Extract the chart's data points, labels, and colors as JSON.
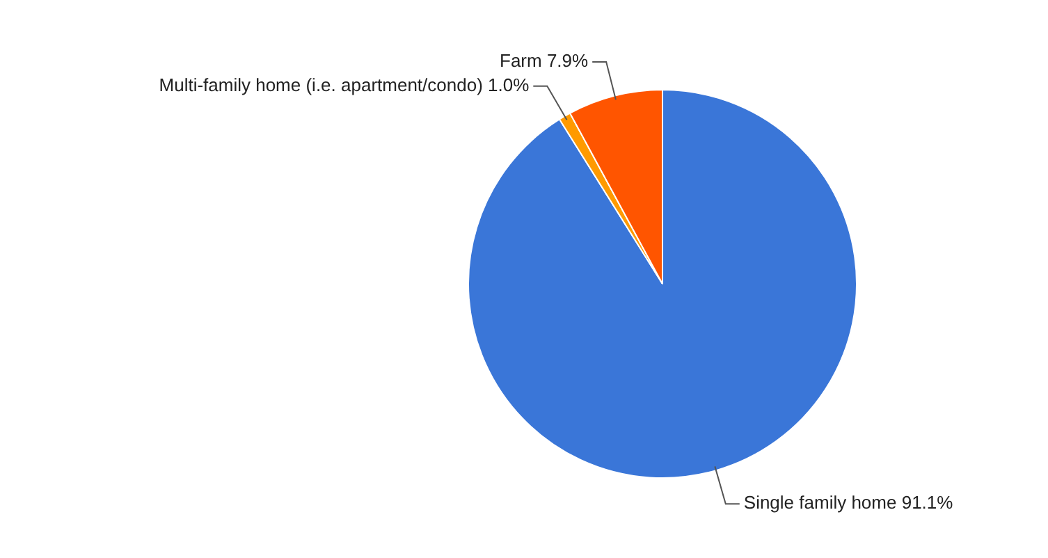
{
  "chart_data": {
    "type": "pie",
    "categories": [
      "Single family home",
      "Multi-family home (i.e. apartment/condo)",
      "Farm"
    ],
    "values": [
      91.1,
      1.0,
      7.9
    ],
    "value_labels": [
      "91.1%",
      "1.0%",
      "7.9%"
    ],
    "colors": [
      "#3a76d8",
      "#ff9a00",
      "#ff5500"
    ],
    "legend": false
  }
}
